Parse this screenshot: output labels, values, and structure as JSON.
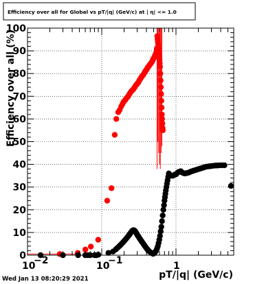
{
  "footer": {
    "timestamp": "Wed Jan 13 08:20:29 2021"
  },
  "chart_data": {
    "type": "scatter",
    "title": "Efficiency over all for Global vs pT/|q| (GeV/c) at | η| <= 1.0",
    "xlabel": "pT/|q| (GeV/c)",
    "ylabel": "Efficiency over all (%)",
    "x_scale": "log",
    "xlim": [
      0.01,
      6
    ],
    "ylim": [
      0,
      100
    ],
    "grid": true,
    "x_major_ticks": [
      {
        "value": 0.01,
        "base": "10",
        "exp": "−2"
      },
      {
        "value": 0.1,
        "base": "10",
        "exp": "−1"
      },
      {
        "value": 1,
        "base": "1",
        "exp": ""
      }
    ],
    "y_ticks": [
      0,
      10,
      20,
      30,
      40,
      50,
      60,
      70,
      80,
      90,
      100
    ],
    "colors": {
      "red_series": "#ff0000",
      "black_series": "#000000"
    },
    "series": [
      {
        "color": "red",
        "points": [
          {
            "x": 0.0272,
            "y": 0.5
          },
          {
            "x": 0.0475,
            "y": 1
          },
          {
            "x": 0.0602,
            "y": 2.5
          },
          {
            "x": 0.0713,
            "y": 3.8
          },
          {
            "x": 0.0896,
            "y": 6.8
          },
          {
            "x": 0.1185,
            "y": 24
          },
          {
            "x": 0.1352,
            "y": 29.5
          },
          {
            "x": 0.1495,
            "y": 53
          },
          {
            "x": 0.1572,
            "y": 60
          },
          {
            "x": 0.1667,
            "y": 63
          },
          {
            "x": 0.1748,
            "y": 64
          },
          {
            "x": 0.1826,
            "y": 65.5
          },
          {
            "x": 0.1899,
            "y": 66.5
          },
          {
            "x": 0.1967,
            "y": 67.5
          },
          {
            "x": 0.203,
            "y": 68
          },
          {
            "x": 0.209,
            "y": 68.5
          },
          {
            "x": 0.2155,
            "y": 69.2
          },
          {
            "x": 0.2225,
            "y": 69.6
          },
          {
            "x": 0.2295,
            "y": 70.2
          },
          {
            "x": 0.2365,
            "y": 71
          },
          {
            "x": 0.2432,
            "y": 71.6
          },
          {
            "x": 0.2505,
            "y": 72.2
          },
          {
            "x": 0.2577,
            "y": 72.6
          },
          {
            "x": 0.2652,
            "y": 73
          },
          {
            "x": 0.273,
            "y": 73.6
          },
          {
            "x": 0.281,
            "y": 74.2
          },
          {
            "x": 0.289,
            "y": 74.9
          },
          {
            "x": 0.297,
            "y": 75.2
          },
          {
            "x": 0.305,
            "y": 75.8
          },
          {
            "x": 0.313,
            "y": 76.2
          },
          {
            "x": 0.321,
            "y": 77
          },
          {
            "x": 0.329,
            "y": 77.5
          },
          {
            "x": 0.337,
            "y": 78.1
          },
          {
            "x": 0.345,
            "y": 78.6
          },
          {
            "x": 0.353,
            "y": 79
          },
          {
            "x": 0.362,
            "y": 79.4
          },
          {
            "x": 0.371,
            "y": 80
          },
          {
            "x": 0.3795,
            "y": 80.6
          },
          {
            "x": 0.388,
            "y": 81.1
          },
          {
            "x": 0.397,
            "y": 81.5
          },
          {
            "x": 0.406,
            "y": 82
          },
          {
            "x": 0.416,
            "y": 82.7
          },
          {
            "x": 0.426,
            "y": 83
          },
          {
            "x": 0.436,
            "y": 83.5
          },
          {
            "x": 0.446,
            "y": 84
          },
          {
            "x": 0.456,
            "y": 84.3
          },
          {
            "x": 0.466,
            "y": 84.8
          },
          {
            "x": 0.476,
            "y": 85.2
          },
          {
            "x": 0.487,
            "y": 86
          },
          {
            "x": 0.498,
            "y": 86.6
          },
          {
            "x": 0.509,
            "y": 87.2
          },
          {
            "x": 0.518,
            "y": 87.6
          },
          {
            "x": 0.524,
            "y": 88
          },
          {
            "x": 0.53,
            "y": 88.5
          },
          {
            "x": 0.535,
            "y": 87.5
          },
          {
            "x": 0.54,
            "y": 89
          },
          {
            "x": 0.545,
            "y": 88
          },
          {
            "x": 0.55,
            "y": 90.5
          },
          {
            "x": 0.555,
            "y": 91.2
          },
          {
            "x": 0.56,
            "y": 96.5
          },
          {
            "x": 0.565,
            "y": 95.2
          },
          {
            "x": 0.57,
            "y": 94
          },
          {
            "x": 0.575,
            "y": 93
          },
          {
            "x": 0.58,
            "y": 92
          },
          {
            "x": 0.585,
            "y": 91
          },
          {
            "x": 0.59,
            "y": 89.5
          },
          {
            "x": 0.595,
            "y": 88
          },
          {
            "x": 0.6,
            "y": 86
          },
          {
            "x": 0.605,
            "y": 84.5
          },
          {
            "x": 0.61,
            "y": 83
          },
          {
            "x": 0.615,
            "y": 80
          },
          {
            "x": 0.62,
            "y": 77
          },
          {
            "x": 0.625,
            "y": 74
          },
          {
            "x": 0.63,
            "y": 71
          },
          {
            "x": 0.635,
            "y": 68
          },
          {
            "x": 0.64,
            "y": 65
          },
          {
            "x": 0.645,
            "y": 62
          },
          {
            "x": 0.65,
            "y": 60
          },
          {
            "x": 0.655,
            "y": 58
          },
          {
            "x": 0.66,
            "y": 56
          },
          {
            "x": 0.665,
            "y": 55
          }
        ],
        "error_bars": [
          {
            "x": 0.556,
            "low": 38,
            "high": 100
          },
          {
            "x": 0.57,
            "low": 50,
            "high": 100
          },
          {
            "x": 0.585,
            "low": 45,
            "high": 100
          },
          {
            "x": 0.6,
            "low": 40,
            "high": 100
          },
          {
            "x": 0.615,
            "low": 38,
            "high": 100
          },
          {
            "x": 0.63,
            "low": 45,
            "high": 100
          },
          {
            "x": 0.645,
            "low": 48,
            "high": 100
          }
        ]
      },
      {
        "color": "black",
        "points": [
          {
            "x": 0.015,
            "y": 0
          },
          {
            "x": 0.03,
            "y": 0
          },
          {
            "x": 0.048,
            "y": 0
          },
          {
            "x": 0.06,
            "y": 0
          },
          {
            "x": 0.065,
            "y": 0
          },
          {
            "x": 0.07,
            "y": 0
          },
          {
            "x": 0.08,
            "y": 0
          },
          {
            "x": 0.085,
            "y": 0
          },
          {
            "x": 0.09,
            "y": 0.2
          },
          {
            "x": 0.123,
            "y": 1
          },
          {
            "x": 0.142,
            "y": 1.6
          },
          {
            "x": 0.154,
            "y": 2.5
          },
          {
            "x": 0.16,
            "y": 3
          },
          {
            "x": 0.1663,
            "y": 3.5
          },
          {
            "x": 0.1726,
            "y": 4
          },
          {
            "x": 0.1788,
            "y": 4.5
          },
          {
            "x": 0.185,
            "y": 5
          },
          {
            "x": 0.1913,
            "y": 5.5
          },
          {
            "x": 0.1975,
            "y": 6
          },
          {
            "x": 0.2038,
            "y": 6.5
          },
          {
            "x": 0.21,
            "y": 7
          },
          {
            "x": 0.2163,
            "y": 7.5
          },
          {
            "x": 0.2225,
            "y": 8
          },
          {
            "x": 0.2288,
            "y": 8.5
          },
          {
            "x": 0.235,
            "y": 9
          },
          {
            "x": 0.241,
            "y": 9.5
          },
          {
            "x": 0.247,
            "y": 10
          },
          {
            "x": 0.253,
            "y": 10.4
          },
          {
            "x": 0.259,
            "y": 10.8
          },
          {
            "x": 0.265,
            "y": 11
          },
          {
            "x": 0.271,
            "y": 11
          },
          {
            "x": 0.277,
            "y": 10.8
          },
          {
            "x": 0.283,
            "y": 10.5
          },
          {
            "x": 0.289,
            "y": 10
          },
          {
            "x": 0.295,
            "y": 9.5
          },
          {
            "x": 0.301,
            "y": 9
          },
          {
            "x": 0.308,
            "y": 8.5
          },
          {
            "x": 0.315,
            "y": 8
          },
          {
            "x": 0.322,
            "y": 7.5
          },
          {
            "x": 0.33,
            "y": 7
          },
          {
            "x": 0.338,
            "y": 6.5
          },
          {
            "x": 0.346,
            "y": 6
          },
          {
            "x": 0.355,
            "y": 5.5
          },
          {
            "x": 0.364,
            "y": 5
          },
          {
            "x": 0.373,
            "y": 4.5
          },
          {
            "x": 0.382,
            "y": 4
          },
          {
            "x": 0.392,
            "y": 3.5
          },
          {
            "x": 0.402,
            "y": 3
          },
          {
            "x": 0.412,
            "y": 2.6
          },
          {
            "x": 0.422,
            "y": 2.2
          },
          {
            "x": 0.432,
            "y": 1.8
          },
          {
            "x": 0.444,
            "y": 1.5
          },
          {
            "x": 0.456,
            "y": 1.2
          },
          {
            "x": 0.468,
            "y": 1
          },
          {
            "x": 0.48,
            "y": 0.8
          },
          {
            "x": 0.492,
            "y": 0.6
          },
          {
            "x": 0.505,
            "y": 0.8
          },
          {
            "x": 0.518,
            "y": 1.1
          },
          {
            "x": 0.531,
            "y": 1.6
          },
          {
            "x": 0.544,
            "y": 2.2
          },
          {
            "x": 0.557,
            "y": 3
          },
          {
            "x": 0.57,
            "y": 4
          },
          {
            "x": 0.583,
            "y": 5.3
          },
          {
            "x": 0.596,
            "y": 6.8
          },
          {
            "x": 0.609,
            "y": 8.5
          },
          {
            "x": 0.622,
            "y": 10.5
          },
          {
            "x": 0.635,
            "y": 12.5
          },
          {
            "x": 0.648,
            "y": 15
          },
          {
            "x": 0.662,
            "y": 17.5
          },
          {
            "x": 0.676,
            "y": 20
          },
          {
            "x": 0.69,
            "y": 22
          },
          {
            "x": 0.7,
            "y": 24
          },
          {
            "x": 0.71,
            "y": 25.5
          },
          {
            "x": 0.72,
            "y": 27
          },
          {
            "x": 0.73,
            "y": 28.5
          },
          {
            "x": 0.743,
            "y": 30
          },
          {
            "x": 0.756,
            "y": 31.5
          },
          {
            "x": 0.77,
            "y": 33
          },
          {
            "x": 0.785,
            "y": 34.5
          },
          {
            "x": 0.8,
            "y": 36
          },
          {
            "x": 0.815,
            "y": 35.4
          },
          {
            "x": 0.83,
            "y": 35
          },
          {
            "x": 0.85,
            "y": 35.2
          },
          {
            "x": 0.88,
            "y": 35
          },
          {
            "x": 0.91,
            "y": 35
          },
          {
            "x": 0.94,
            "y": 35.3
          },
          {
            "x": 0.97,
            "y": 35.5
          },
          {
            "x": 1.0,
            "y": 35.6
          },
          {
            "x": 1.04,
            "y": 36.2
          },
          {
            "x": 1.08,
            "y": 36.6
          },
          {
            "x": 1.12,
            "y": 36.8
          },
          {
            "x": 1.16,
            "y": 37
          },
          {
            "x": 1.2,
            "y": 36.5
          },
          {
            "x": 1.25,
            "y": 36.2
          },
          {
            "x": 1.3,
            "y": 36
          },
          {
            "x": 1.35,
            "y": 36
          },
          {
            "x": 1.4,
            "y": 36.2
          },
          {
            "x": 1.46,
            "y": 36.3
          },
          {
            "x": 1.52,
            "y": 36.5
          },
          {
            "x": 1.58,
            "y": 36.8
          },
          {
            "x": 1.65,
            "y": 37
          },
          {
            "x": 1.72,
            "y": 37.2
          },
          {
            "x": 1.8,
            "y": 37.4
          },
          {
            "x": 1.88,
            "y": 37.6
          },
          {
            "x": 1.96,
            "y": 37.8
          },
          {
            "x": 2.05,
            "y": 38
          },
          {
            "x": 2.15,
            "y": 38.2
          },
          {
            "x": 2.25,
            "y": 38.4
          },
          {
            "x": 2.35,
            "y": 38.6
          },
          {
            "x": 2.45,
            "y": 38.8
          },
          {
            "x": 2.6,
            "y": 39
          },
          {
            "x": 2.75,
            "y": 39.1
          },
          {
            "x": 2.9,
            "y": 39.2
          },
          {
            "x": 3.05,
            "y": 39.3
          },
          {
            "x": 3.25,
            "y": 39.4
          },
          {
            "x": 3.45,
            "y": 39.5
          },
          {
            "x": 3.65,
            "y": 39.5
          },
          {
            "x": 3.9,
            "y": 39.6
          },
          {
            "x": 4.2,
            "y": 39.6
          },
          {
            "x": 4.5,
            "y": 39.6
          },
          {
            "x": 5.5,
            "y": 30.5
          }
        ]
      }
    ]
  }
}
